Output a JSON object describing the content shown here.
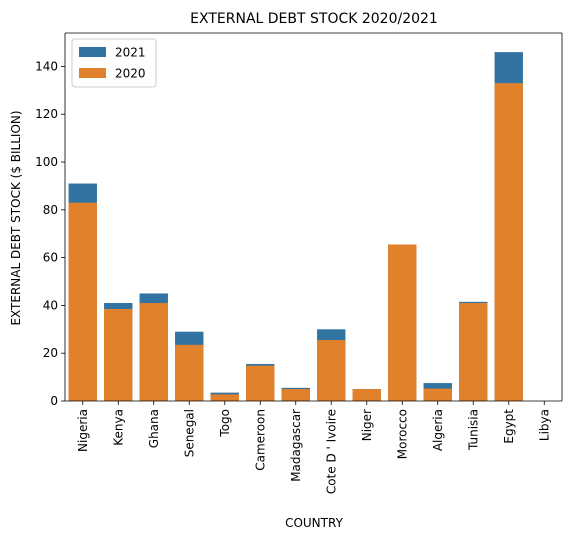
{
  "chart_data": {
    "type": "bar",
    "title": "EXTERNAL DEBT STOCK 2020/2021",
    "xlabel": "COUNTRY",
    "ylabel": "EXTERNAL DEBT STOCK ($ BILLION)",
    "categories": [
      "Nigeria",
      "Kenya",
      "Ghana",
      "Senegal",
      "Togo",
      "Cameroon",
      "Madagascar",
      "Cote D ' Ivoire",
      "Niger",
      "Morocco",
      "Algeria",
      "Tunisia",
      "Egypt",
      "Libya"
    ],
    "series": [
      {
        "name": "2021",
        "color": "#3274a1",
        "values": [
          91,
          41,
          45,
          29,
          3.5,
          15.5,
          5.5,
          30,
          5,
          65,
          7.5,
          41.5,
          146,
          0
        ]
      },
      {
        "name": "2020",
        "color": "#e1812c",
        "values": [
          83,
          38.5,
          41,
          23.5,
          2.8,
          14.8,
          5,
          25.5,
          5,
          65.5,
          5.2,
          41,
          133,
          0
        ]
      }
    ],
    "ylim": [
      0,
      154
    ],
    "yticks": [
      0,
      20,
      40,
      60,
      80,
      100,
      120,
      140
    ],
    "grid": false,
    "legend_position": "top-left",
    "layout": "overlaid"
  }
}
